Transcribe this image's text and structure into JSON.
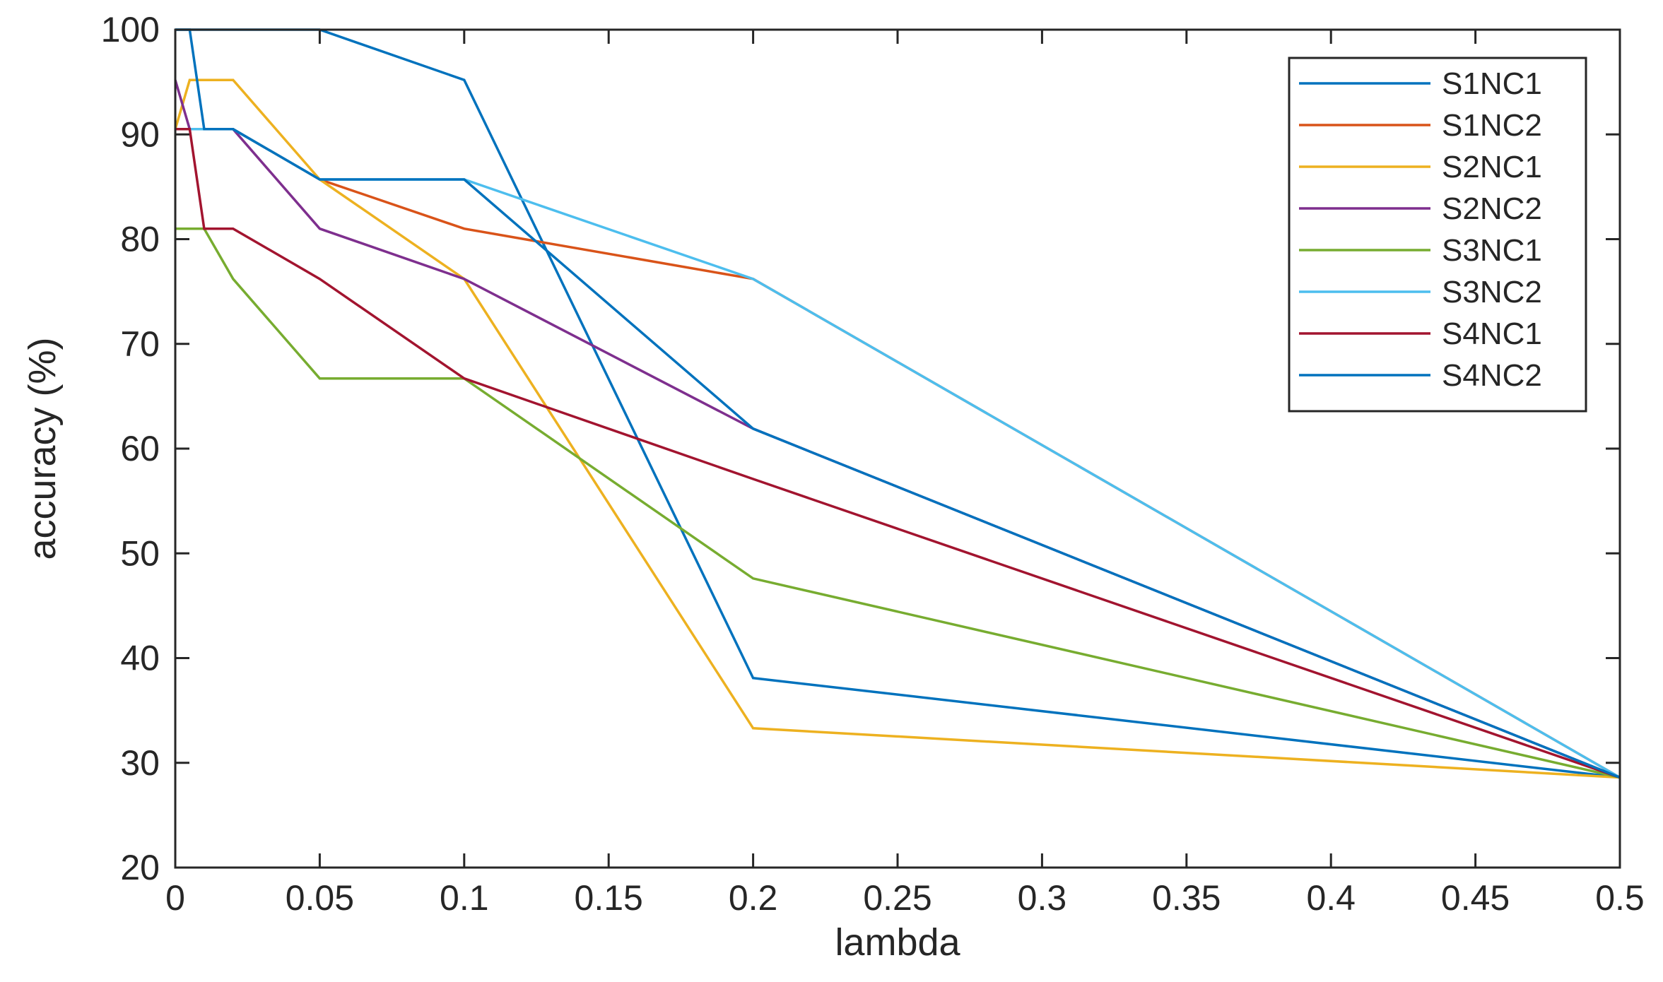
{
  "chart_data": {
    "type": "line",
    "title": "",
    "xlabel": "lambda",
    "ylabel": "accuracy (%)",
    "xlim": [
      0,
      0.5
    ],
    "ylim": [
      20,
      100
    ],
    "xticks": [
      0,
      0.05,
      0.1,
      0.15,
      0.2,
      0.25,
      0.3,
      0.35,
      0.4,
      0.45,
      0.5
    ],
    "xtick_labels": [
      "0",
      "0.05",
      "0.1",
      "0.15",
      "0.2",
      "0.25",
      "0.3",
      "0.35",
      "0.4",
      "0.45",
      "0.5"
    ],
    "yticks": [
      20,
      30,
      40,
      50,
      60,
      70,
      80,
      90,
      100
    ],
    "ytick_labels": [
      "20",
      "30",
      "40",
      "50",
      "60",
      "70",
      "80",
      "90",
      "100"
    ],
    "grid": false,
    "box": true,
    "legend_position": "top-right",
    "x": [
      0,
      0.005,
      0.01,
      0.02,
      0.05,
      0.1,
      0.2,
      0.5
    ],
    "series": [
      {
        "name": "S1NC1",
        "color": "#0072BD",
        "values": [
          100,
          100,
          100,
          100,
          100,
          95.2,
          38.1,
          28.6
        ]
      },
      {
        "name": "S1NC2",
        "color": "#D95319",
        "values": [
          90.5,
          90.5,
          90.5,
          90.5,
          85.7,
          81,
          76.2,
          28.6
        ]
      },
      {
        "name": "S2NC1",
        "color": "#EDB120",
        "values": [
          90.5,
          95.2,
          95.2,
          95.2,
          85.7,
          76.2,
          33.3,
          28.6
        ]
      },
      {
        "name": "S2NC2",
        "color": "#7E2F8E",
        "values": [
          95.2,
          90.5,
          90.5,
          90.5,
          81,
          76.2,
          61.9,
          28.6
        ]
      },
      {
        "name": "S3NC1",
        "color": "#77AC30",
        "values": [
          81,
          81,
          81,
          76.2,
          66.7,
          66.7,
          47.6,
          28.6
        ]
      },
      {
        "name": "S3NC2",
        "color": "#4DBEEE",
        "values": [
          90.5,
          90.5,
          90.5,
          90.5,
          85.7,
          85.7,
          76.2,
          28.6
        ]
      },
      {
        "name": "S4NC1",
        "color": "#A2142F",
        "values": [
          90.5,
          90.5,
          81,
          81,
          76.2,
          66.7,
          57.1,
          28.6
        ]
      },
      {
        "name": "S4NC2",
        "color": "#0072BD",
        "values": [
          100,
          100,
          90.5,
          90.5,
          85.7,
          85.7,
          61.9,
          28.6
        ]
      }
    ]
  }
}
